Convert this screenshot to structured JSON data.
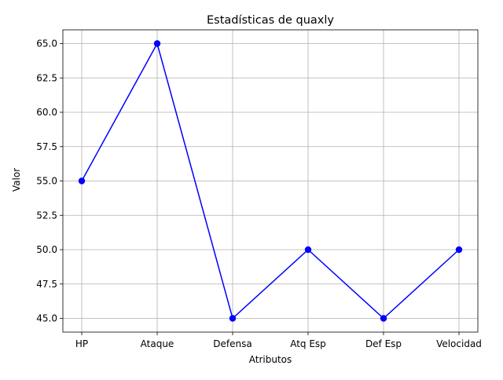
{
  "chart_data": {
    "type": "line",
    "title": "Estadísticas de quaxly",
    "xlabel": "Atributos",
    "ylabel": "Valor",
    "categories": [
      "HP",
      "Ataque",
      "Defensa",
      "Atq Esp",
      "Def Esp",
      "Velocidad"
    ],
    "series": [
      {
        "values": [
          55,
          65,
          45,
          50,
          45,
          50
        ]
      }
    ],
    "ylim": [
      44,
      66
    ],
    "yticks": [
      45.0,
      47.5,
      50.0,
      52.5,
      55.0,
      57.5,
      60.0,
      62.5,
      65.0
    ],
    "ytick_labels": [
      "45.0",
      "47.5",
      "50.0",
      "52.5",
      "55.0",
      "57.5",
      "60.0",
      "62.5",
      "65.0"
    ],
    "grid": true,
    "line_color": "#0000ff",
    "marker": "circle"
  }
}
